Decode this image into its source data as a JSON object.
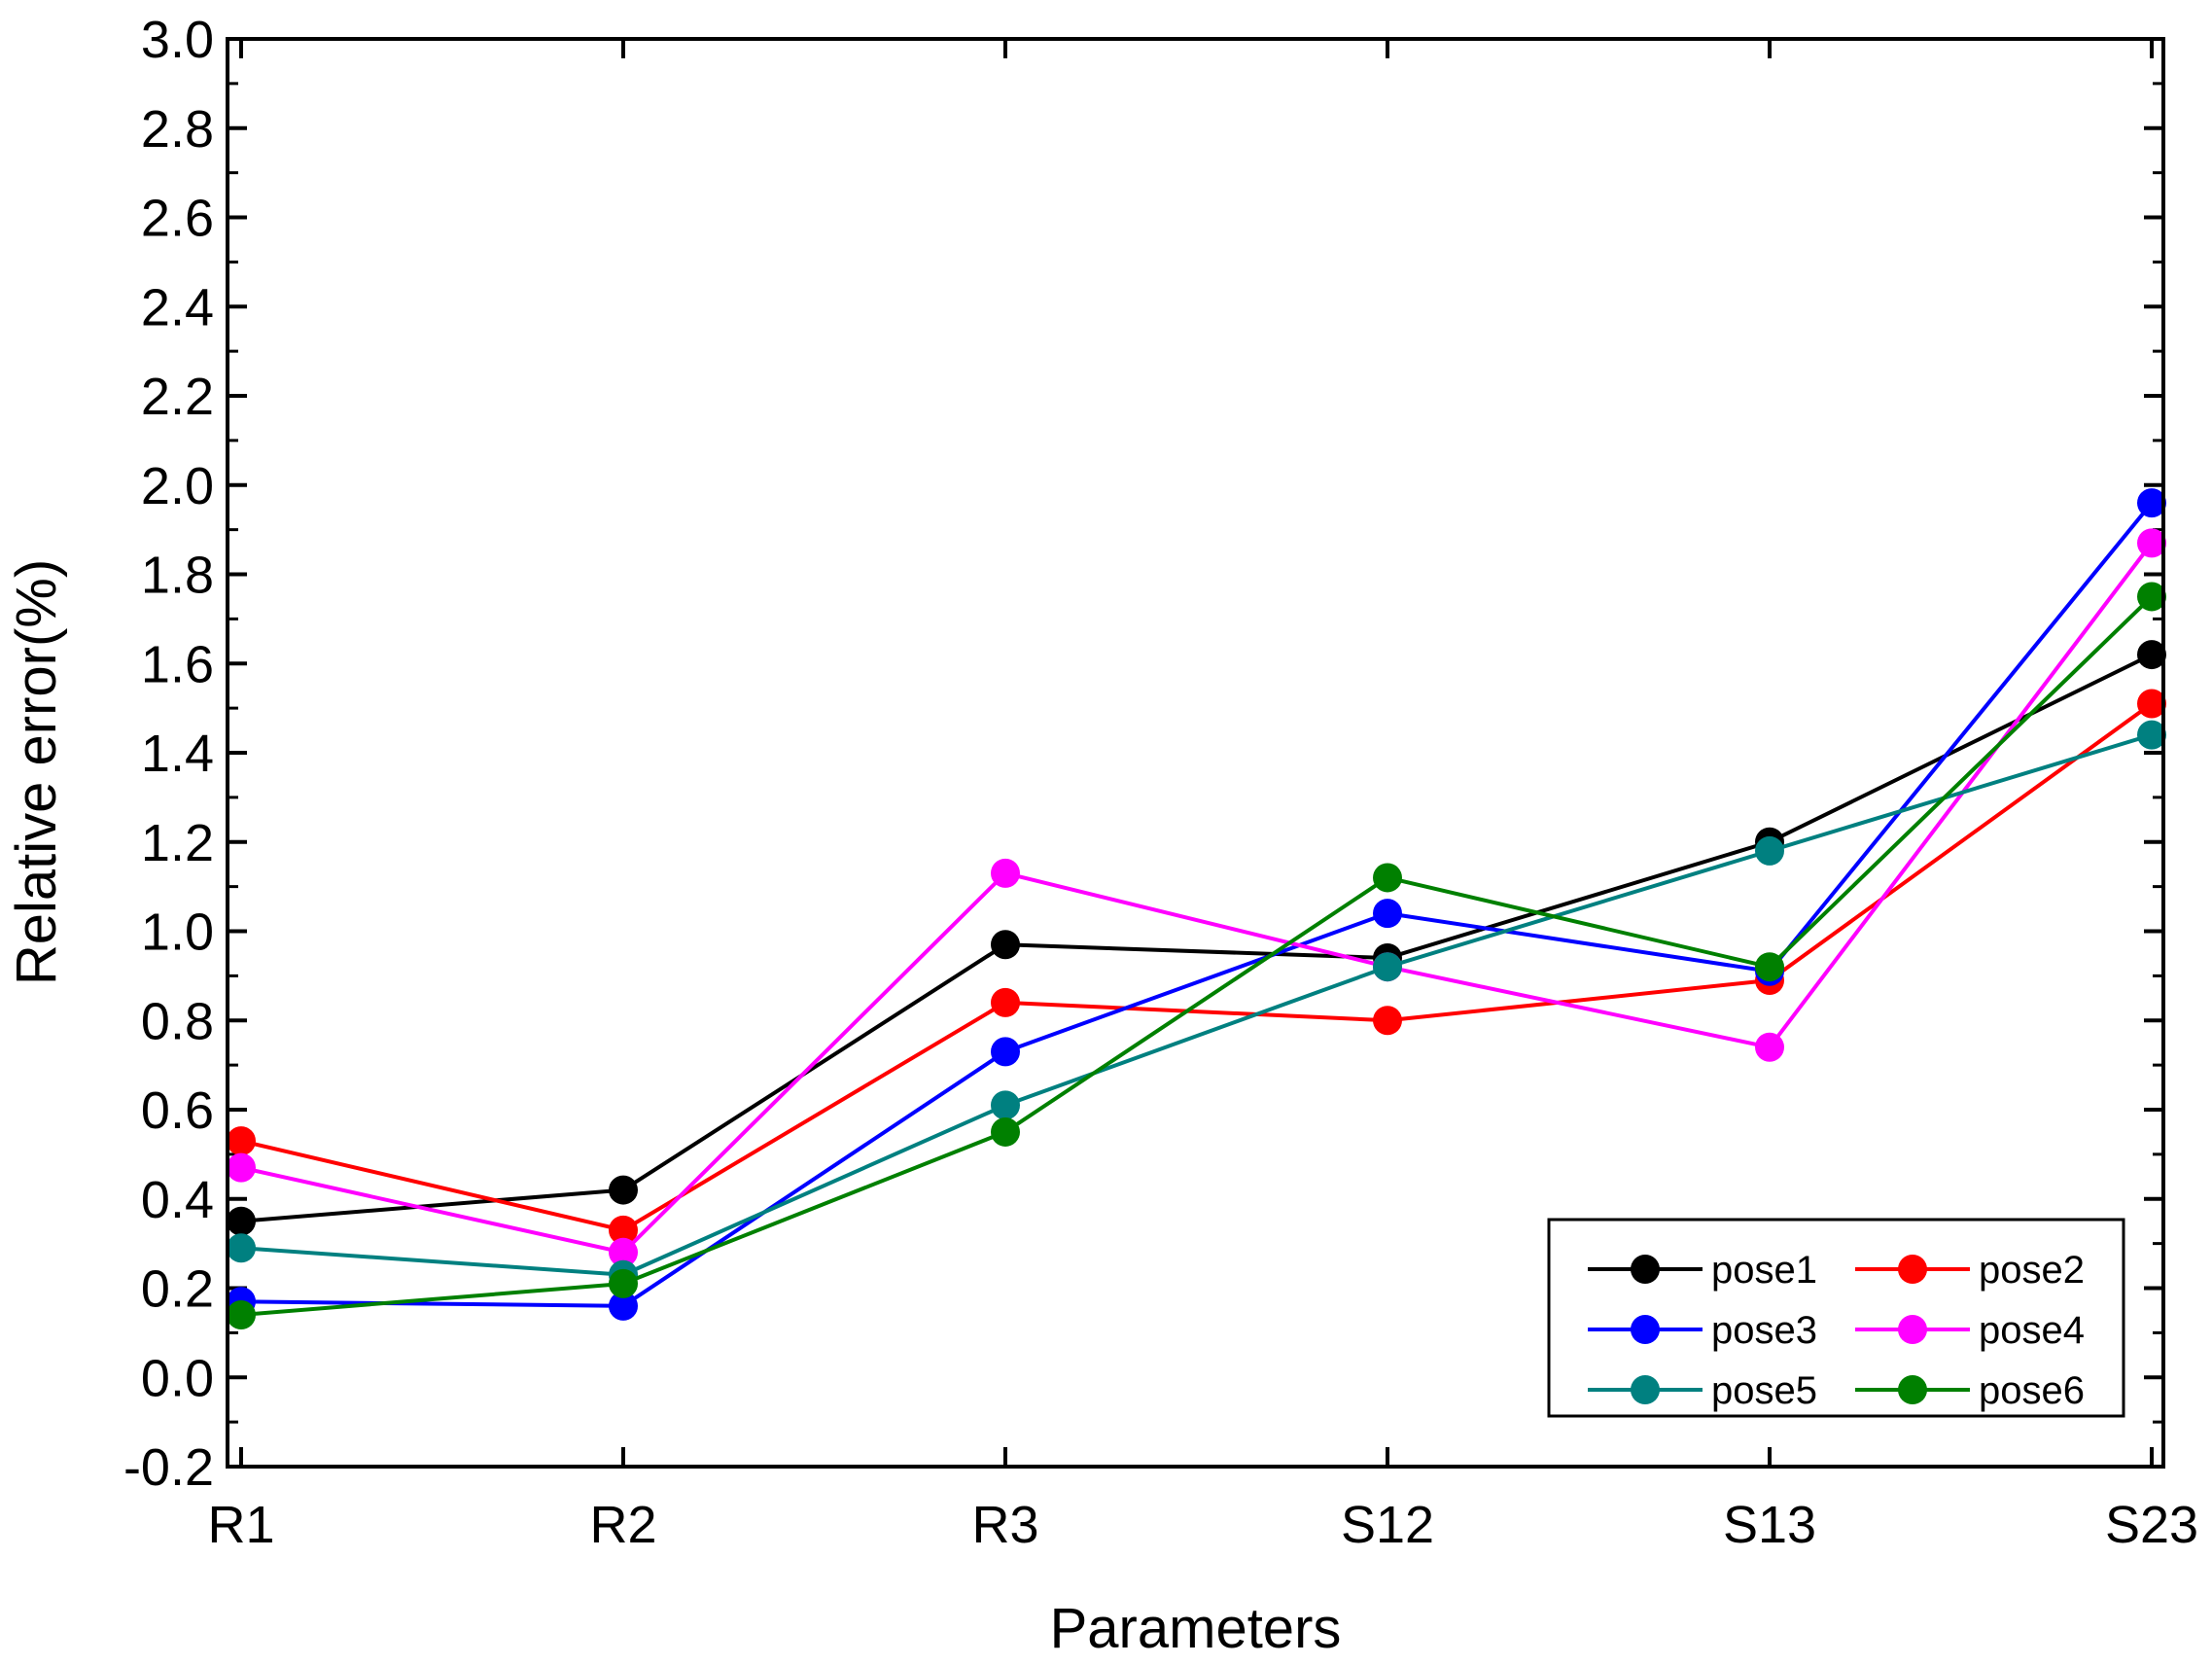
{
  "chart_data": {
    "type": "line",
    "title": "",
    "xlabel": "Parameters",
    "ylabel": "Relative error(%)",
    "categories": [
      "R1",
      "R2",
      "R3",
      "S12",
      "S13",
      "S23"
    ],
    "ylim": [
      -0.2,
      3.0
    ],
    "y_major_step": 0.2,
    "yticks": [
      "-0.2",
      "0.0",
      "0.2",
      "0.4",
      "0.6",
      "0.8",
      "1.0",
      "1.2",
      "1.4",
      "1.6",
      "1.8",
      "2.0",
      "2.2",
      "2.4",
      "2.6",
      "2.8",
      "3.0"
    ],
    "grid": false,
    "legend_position": "bottom-right",
    "series": [
      {
        "name": "pose1",
        "color": "#000000",
        "values": [
          0.35,
          0.42,
          0.97,
          0.94,
          1.2,
          1.62
        ]
      },
      {
        "name": "pose2",
        "color": "#ff0000",
        "values": [
          0.53,
          0.33,
          0.84,
          0.8,
          0.89,
          1.51
        ]
      },
      {
        "name": "pose3",
        "color": "#0000ff",
        "values": [
          0.17,
          0.16,
          0.73,
          1.04,
          0.91,
          1.96
        ]
      },
      {
        "name": "pose4",
        "color": "#ff00ff",
        "values": [
          0.47,
          0.28,
          1.13,
          0.92,
          0.74,
          1.87
        ]
      },
      {
        "name": "pose5",
        "color": "#008080",
        "values": [
          0.29,
          0.23,
          0.61,
          0.92,
          1.18,
          1.44
        ]
      },
      {
        "name": "pose6",
        "color": "#008000",
        "values": [
          0.14,
          0.21,
          0.55,
          1.12,
          0.92,
          1.75
        ]
      }
    ]
  }
}
